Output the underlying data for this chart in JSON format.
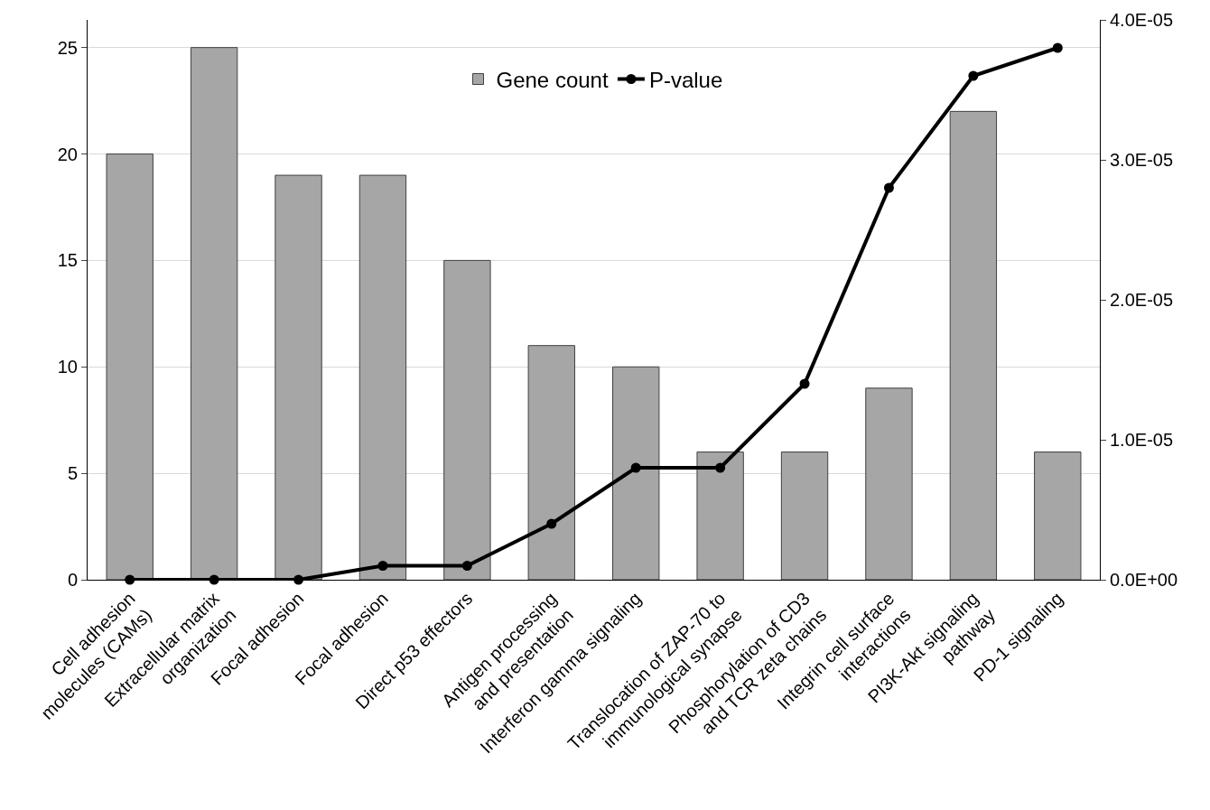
{
  "chart_data": {
    "type": "bar",
    "categories": [
      "Cell adhesion\nmolecules (CAMs)",
      "Extracellular matrix\norganization",
      "Focal adhesion",
      "Focal adhesion",
      "Direct p53 effectors",
      "Antigen processing\nand presentation",
      "Interferon gamma signaling",
      "Translocation of ZAP-70 to\nimmunological synapse",
      "Phosphorylation of CD3\nand TCR zeta chains",
      "Integrin cell surface\ninteractions",
      "PI3K-Akt signaling\npathway",
      "PD-1 signaling"
    ],
    "series": [
      {
        "name": "Gene count",
        "color": "#a6a6a6",
        "values": [
          20,
          25,
          19,
          19,
          15,
          11,
          10,
          6,
          6,
          9,
          22,
          6
        ]
      },
      {
        "name": "P-value",
        "type": "line",
        "axis": "y2",
        "color": "#000000",
        "marker": "circle",
        "line_style": "solid",
        "values": [
          0,
          0,
          0,
          1e-06,
          1e-06,
          4e-06,
          8e-06,
          8e-06,
          1.4e-05,
          2.8e-05,
          3.6e-05,
          3.8e-05
        ]
      }
    ],
    "ylim": [
      0,
      26.3
    ],
    "yticks": [
      0,
      5,
      10,
      15,
      20,
      25
    ],
    "y2lim": [
      0,
      4e-05
    ],
    "y2ticks": [
      {
        "value": 0,
        "label": "0.0E+00"
      },
      {
        "value": 1e-05,
        "label": "1.0E-05"
      },
      {
        "value": 2e-05,
        "label": "2.0E-05"
      },
      {
        "value": 3e-05,
        "label": "3.0E-05"
      },
      {
        "value": 4e-05,
        "label": "4.0E-05"
      }
    ],
    "grid": "y",
    "legend": "top"
  }
}
